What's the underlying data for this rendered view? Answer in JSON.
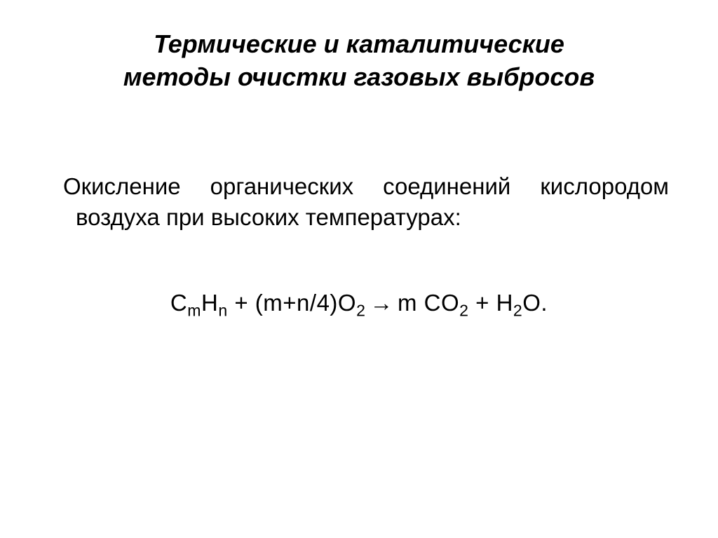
{
  "slide": {
    "title_line1": "Термические и каталитические",
    "title_line2": "методы очистки газовых выбросов",
    "body_text": "Окисление органических соединений кислородом воздуха при высоких температурах:",
    "equation": {
      "reactant1_base1": "C",
      "reactant1_sub1": "m",
      "reactant1_base2": "H",
      "reactant1_sub2": "n",
      "plus1": " + ",
      "coeff2": "(m+n/4)",
      "reactant2_base": "O",
      "reactant2_sub": "2",
      "arrow": " → ",
      "coeff3": "m ",
      "product1_base1": "CO",
      "product1_sub1": "2",
      "plus2": " +  ",
      "product2_base1": "H",
      "product2_sub1": "2",
      "product2_base2": "O",
      "period": "."
    }
  },
  "styling": {
    "background_color": "#ffffff",
    "text_color": "#000000",
    "title_fontsize": 36,
    "body_fontsize": 33,
    "equation_fontsize": 33,
    "title_weight": "bold",
    "title_style": "italic",
    "font_family": "Arial"
  }
}
